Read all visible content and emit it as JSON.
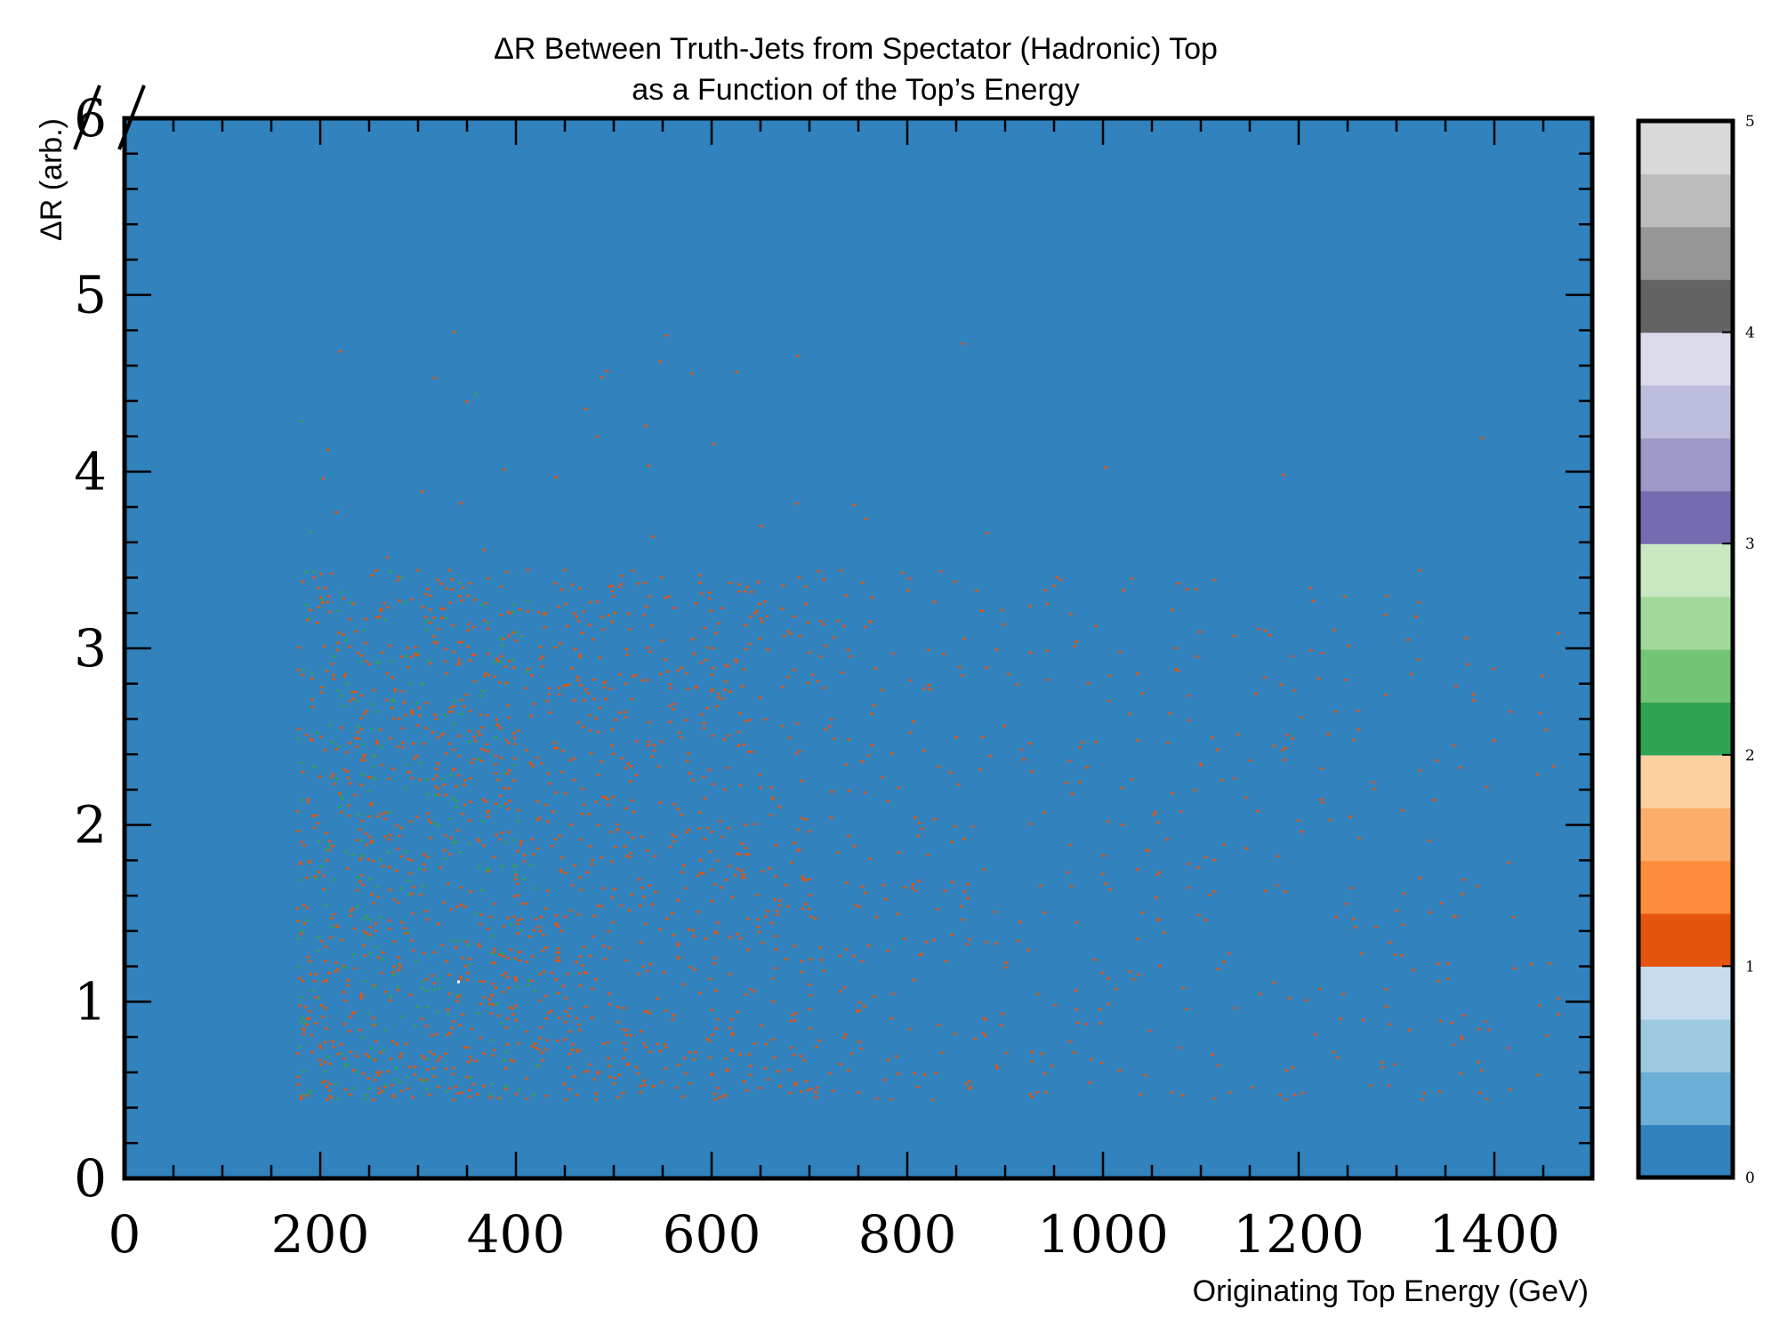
{
  "chart_data": {
    "type": "heatmap",
    "title_line1": "ΔR Between Truth-Jets from Spectator (Hadronic) Top",
    "title_line2": "as a Function of the Top’s Energy",
    "xlabel": "Originating Top Energy (GeV)",
    "ylabel": "ΔR (arb.)",
    "xlim": [
      0,
      1500
    ],
    "ylim": [
      0,
      6
    ],
    "x_ticks": [
      "0",
      "200",
      "400",
      "600",
      "800",
      "1000",
      "1200",
      "1400"
    ],
    "x_tick_values": [
      0,
      200,
      400,
      600,
      800,
      1000,
      1200,
      1400
    ],
    "y_ticks": [
      "0",
      "1",
      "2",
      "3",
      "4",
      "5",
      "6"
    ],
    "y_tick_values": [
      0,
      1,
      2,
      3,
      4,
      5,
      6
    ],
    "background_color": "#3182bd",
    "colorbar": {
      "range": [
        0,
        5
      ],
      "ticks": [
        "0",
        "1",
        "2",
        "3",
        "4",
        "5"
      ],
      "tick_values": [
        0,
        1,
        2,
        3,
        4,
        5
      ],
      "colors": [
        "#3182bd",
        "#6baed6",
        "#9ecae1",
        "#c6dbef",
        "#e6550d",
        "#fd8d3c",
        "#fdae6b",
        "#fdd0a2",
        "#31a354",
        "#74c476",
        "#a1d99b",
        "#c7e9c0",
        "#756bb1",
        "#9e9ac8",
        "#bcbddc",
        "#dadaeb",
        "#636363",
        "#969696",
        "#bdbdbd",
        "#d9d9d9"
      ]
    },
    "density_regions": [
      {
        "x": [
          175,
          400
        ],
        "y": [
          0.45,
          3.5
        ],
        "level": "high"
      },
      {
        "x": [
          400,
          700
        ],
        "y": [
          0.45,
          3.2
        ],
        "level": "medium"
      },
      {
        "x": [
          700,
          1460
        ],
        "y": [
          0.45,
          3.2
        ],
        "level": "low"
      }
    ],
    "scatter_colors": {
      "low": "#e6550d",
      "mid": "#31a354",
      "peak": "#ffffff"
    }
  }
}
